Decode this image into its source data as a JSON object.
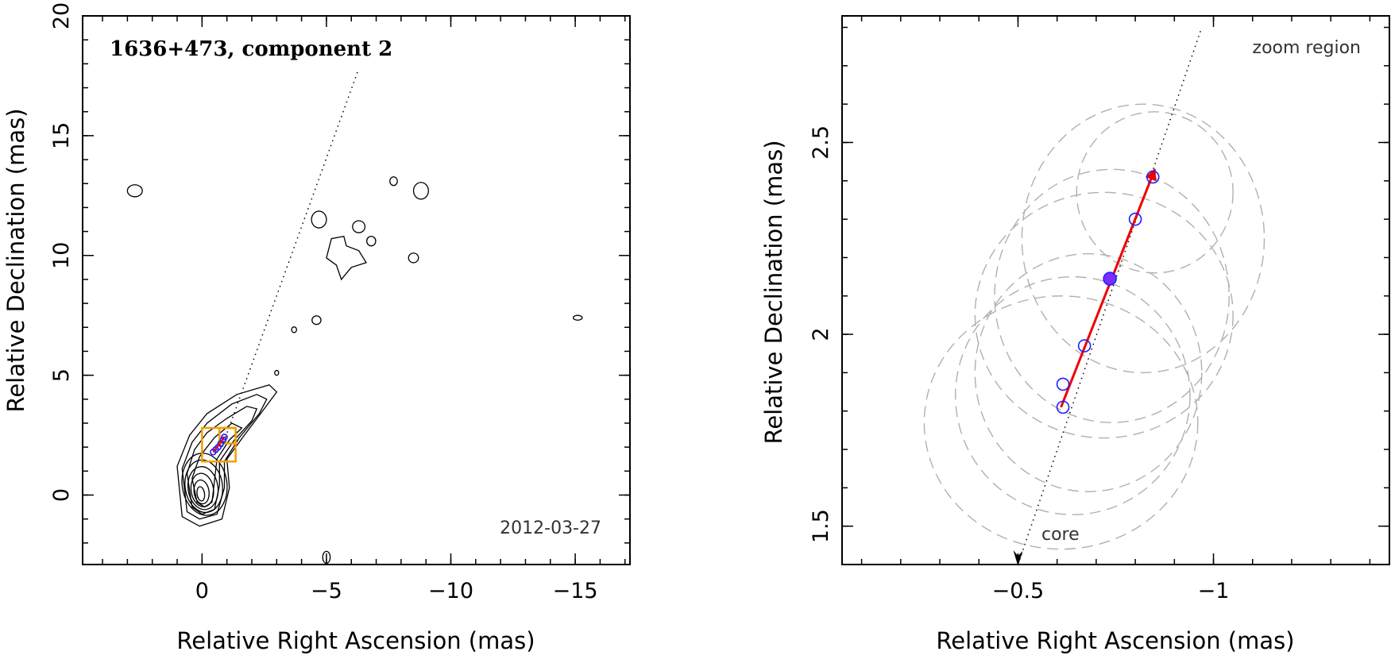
{
  "chart_data": [
    {
      "type": "scatter",
      "panel": "left",
      "title": "1636+473, component 2",
      "annotation": "2012-03-27",
      "xlabel": "Relative Right Ascension (mas)",
      "ylabel": "Relative Declination (mas)",
      "xlim": [
        4.8,
        -17.2
      ],
      "ylim": [
        -2.9,
        20
      ],
      "x_ticks": [
        0,
        -5,
        -10,
        -15
      ],
      "x_tick_labels": [
        "0",
        "−5",
        "−10",
        "−15"
      ],
      "y_ticks": [
        0,
        5,
        10,
        15,
        20
      ],
      "y_tick_labels": [
        "0",
        "5",
        "10",
        "15",
        "20"
      ],
      "grid": false,
      "trajectory_line": {
        "from": [
          -0.8,
          2.0
        ],
        "to": [
          -6.3,
          17.8
        ]
      },
      "component_positions": [
        {
          "x": -0.45,
          "y": 1.8
        },
        {
          "x": -0.55,
          "y": 1.9
        },
        {
          "x": -0.65,
          "y": 2.0
        },
        {
          "x": -0.75,
          "y": 2.15
        },
        {
          "x": -0.85,
          "y": 2.3
        },
        {
          "x": -0.9,
          "y": 2.42
        }
      ],
      "zoom_boxes": [
        {
          "x_range": [
            0.0,
            -1.35
          ],
          "y_range": [
            1.4,
            2.8
          ]
        },
        {
          "x_range": [
            -0.7,
            -1.35
          ],
          "y_range": [
            2.15,
            2.8
          ]
        }
      ]
    },
    {
      "type": "scatter",
      "panel": "right",
      "title": "zoom region",
      "annotation": "core",
      "xlabel": "Relative Right Ascension (mas)",
      "ylabel": "Relative Declination (mas)",
      "xlim": [
        -0.05,
        -1.45
      ],
      "ylim": [
        1.4,
        2.83
      ],
      "x_ticks": [
        -0.5,
        -1
      ],
      "x_tick_labels": [
        "−0.5",
        "−1"
      ],
      "y_ticks": [
        1.5,
        2,
        2.5
      ],
      "y_tick_labels": [
        "1.5",
        "2",
        "2.5"
      ],
      "grid": false,
      "trajectory_line": {
        "from": [
          -0.5,
          1.4
        ],
        "to": [
          -0.97,
          2.8
        ]
      },
      "motion_vector": {
        "from": [
          -0.61,
          1.81
        ],
        "to": [
          -0.85,
          2.43
        ],
        "color": "#ee0000"
      },
      "mean_position": {
        "x": -0.735,
        "y": 2.145,
        "color": "#7b2cff"
      },
      "component_positions": [
        {
          "x": -0.615,
          "y": 1.81
        },
        {
          "x": -0.615,
          "y": 1.87
        },
        {
          "x": -0.67,
          "y": 1.97
        },
        {
          "x": -0.8,
          "y": 2.3
        },
        {
          "x": -0.845,
          "y": 2.41
        }
      ],
      "beam_ellipses": [
        {
          "cx": -0.61,
          "cy": 1.77,
          "rx": 0.35,
          "ry": 0.33
        },
        {
          "cx": -0.64,
          "cy": 1.84,
          "rx": 0.3,
          "ry": 0.31
        },
        {
          "cx": -0.68,
          "cy": 1.9,
          "rx": 0.29,
          "ry": 0.31
        },
        {
          "cx": -0.72,
          "cy": 2.05,
          "rx": 0.33,
          "ry": 0.32
        },
        {
          "cx": -0.74,
          "cy": 2.1,
          "rx": 0.3,
          "ry": 0.33
        },
        {
          "cx": -0.82,
          "cy": 2.25,
          "rx": 0.31,
          "ry": 0.35
        },
        {
          "cx": -0.85,
          "cy": 2.37,
          "rx": 0.2,
          "ry": 0.21
        }
      ]
    }
  ],
  "colors": {
    "motion_vector": "#ee0000",
    "component_marker": "#1f1fff",
    "mean_marker": "#7b2cff",
    "zoom_box": "#f0a000",
    "beam_ellipse": "#b0b0b0"
  }
}
